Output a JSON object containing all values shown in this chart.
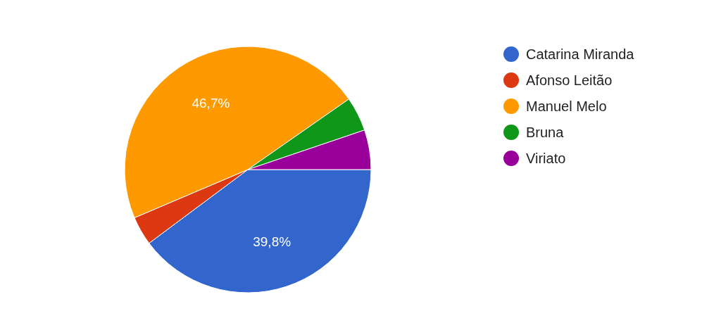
{
  "chart_data": {
    "type": "pie",
    "categories": [
      "Catarina Miranda",
      "Afonso Leitão",
      "Manuel Melo",
      "Bruna",
      "Viriato"
    ],
    "values": [
      39.8,
      3.8,
      46.7,
      4.5,
      5.2
    ],
    "colors": [
      "#3366cc",
      "#dc3912",
      "#ff9900",
      "#109618",
      "#990099"
    ],
    "value_labels": [
      "39,8%",
      null,
      "46,7%",
      null,
      null
    ],
    "legend": "right"
  }
}
